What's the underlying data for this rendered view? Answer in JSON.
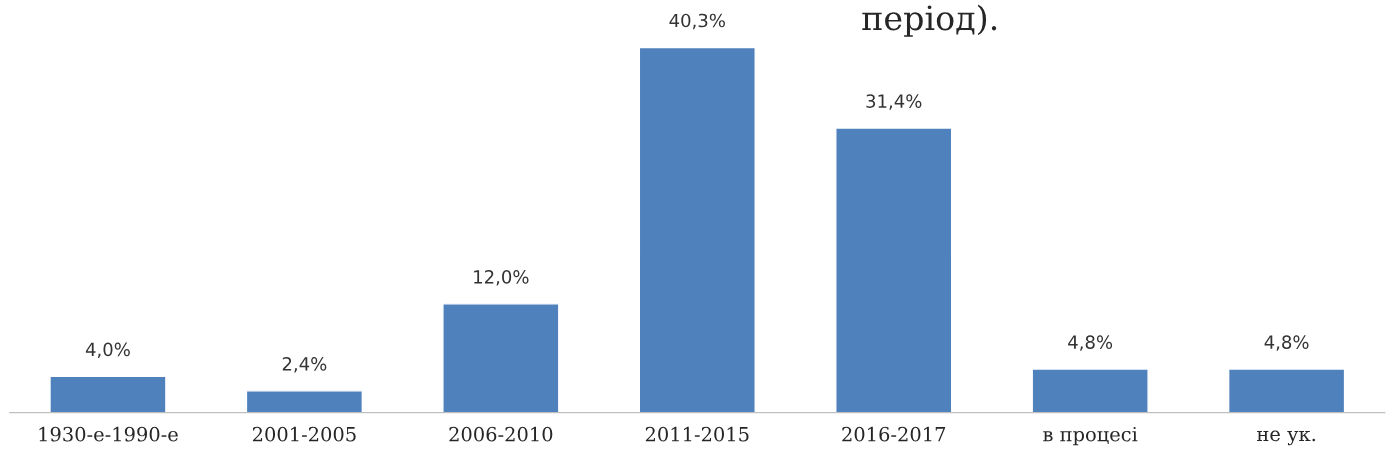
{
  "chart_data": {
    "type": "bar",
    "categories": [
      "1930-е-1990-е",
      "2001-2005",
      "2006-2010",
      "2011-2015",
      "2016-2017",
      "в процесі",
      "не ук."
    ],
    "values": [
      4.0,
      2.4,
      12.0,
      40.3,
      31.4,
      4.8,
      4.8
    ],
    "value_labels": [
      "4,0%",
      "2,4%",
      "12,0%",
      "40,3%",
      "31,4%",
      "4,8%",
      "4,8%"
    ],
    "color": "#4f81bd",
    "grid": false,
    "legend": false,
    "annotations": [
      "період)."
    ]
  }
}
